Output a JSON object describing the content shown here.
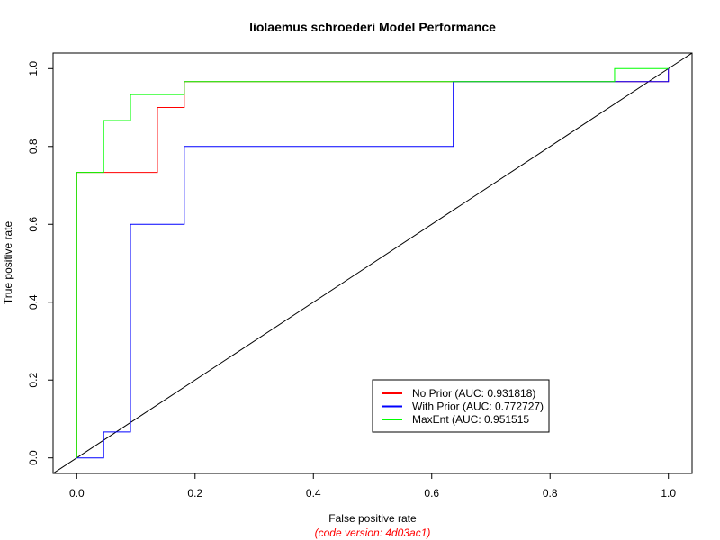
{
  "chart_data": {
    "type": "line",
    "title": "liolaemus schroederi Model Performance",
    "xlabel": "False positive rate",
    "ylabel": "True positive rate",
    "caption": "(code version: 4d03ac1)",
    "caption_color": "#ff0000",
    "xlim": [
      -0.04,
      1.04
    ],
    "ylim": [
      -0.04,
      1.04
    ],
    "x_ticks": [
      0.0,
      0.2,
      0.4,
      0.6,
      0.8,
      1.0
    ],
    "y_ticks": [
      0.0,
      0.2,
      0.4,
      0.6,
      0.8,
      1.0
    ],
    "x_tick_labels": [
      "0.0",
      "0.2",
      "0.4",
      "0.6",
      "0.8",
      "1.0"
    ],
    "y_tick_labels": [
      "0.0",
      "0.2",
      "0.4",
      "0.6",
      "0.8",
      "1.0"
    ],
    "grid": false,
    "legend_position": "bottom-right",
    "reference_line": {
      "x": [
        0,
        1
      ],
      "y": [
        0,
        1
      ],
      "color": "#000000"
    },
    "series": [
      {
        "name": "No Prior (AUC: 0.931818)",
        "color": "#ff0000",
        "x": [
          0,
          0,
          0.0455,
          0.0455,
          0.0909,
          0.0909,
          0.1364,
          0.1364,
          0.1818,
          0.1818,
          0.9091,
          0.9091,
          1,
          1
        ],
        "y": [
          0,
          0.7333,
          0.7333,
          0.7333,
          0.7333,
          0.7333,
          0.7333,
          0.9,
          0.9,
          0.9667,
          0.9667,
          0.9667,
          0.9667,
          1
        ]
      },
      {
        "name": "With Prior (AUC: 0.772727)",
        "color": "#0000ff",
        "x": [
          0,
          0,
          0.0455,
          0.0455,
          0.0909,
          0.0909,
          0.1818,
          0.1818,
          0.6364,
          0.6364,
          1,
          1
        ],
        "y": [
          0,
          0,
          0,
          0.0667,
          0.0667,
          0.6,
          0.6,
          0.8,
          0.8,
          0.9667,
          0.9667,
          1
        ]
      },
      {
        "name": "MaxEnt (AUC: 0.951515",
        "color": "#00ff00",
        "x": [
          0,
          0,
          0.0455,
          0.0455,
          0.0909,
          0.0909,
          0.1818,
          0.1818,
          0.9091,
          0.9091,
          1,
          1
        ],
        "y": [
          0,
          0.7333,
          0.7333,
          0.8667,
          0.8667,
          0.9333,
          0.9333,
          0.9667,
          0.9667,
          1,
          1,
          1
        ]
      }
    ]
  }
}
